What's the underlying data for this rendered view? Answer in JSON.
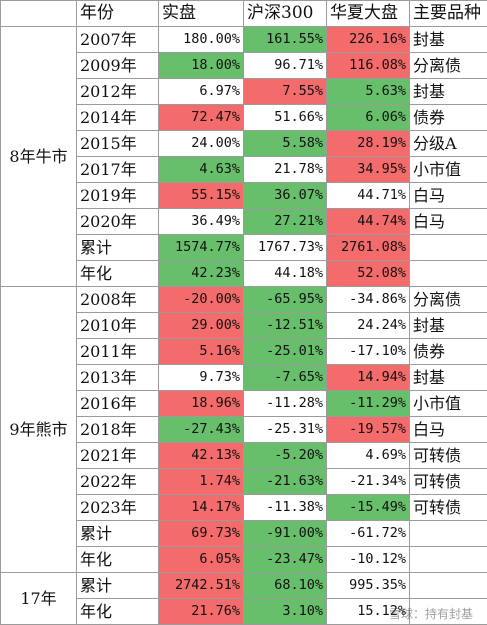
{
  "header": {
    "period": "",
    "year": "年份",
    "actual": "实盘",
    "hs300": "沪深300",
    "hxdp": "华夏大盘",
    "product": "主要品种"
  },
  "sections": [
    {
      "period": "8年牛市",
      "rows": [
        {
          "year": "2007年",
          "actual": "180.00%",
          "actual_color": "white",
          "hs300": "161.55%",
          "hs300_color": "green",
          "hxdp": "226.16%",
          "hxdp_color": "red",
          "product": "封基"
        },
        {
          "year": "2009年",
          "actual": "18.00%",
          "actual_color": "green",
          "hs300": "96.71%",
          "hs300_color": "white",
          "hxdp": "116.08%",
          "hxdp_color": "red",
          "product": "分离债"
        },
        {
          "year": "2012年",
          "actual": "6.97%",
          "actual_color": "white",
          "hs300": "7.55%",
          "hs300_color": "red",
          "hxdp": "5.63%",
          "hxdp_color": "green",
          "product": "封基"
        },
        {
          "year": "2014年",
          "actual": "72.47%",
          "actual_color": "red",
          "hs300": "51.66%",
          "hs300_color": "white",
          "hxdp": "6.06%",
          "hxdp_color": "green",
          "product": "债券"
        },
        {
          "year": "2015年",
          "actual": "24.00%",
          "actual_color": "white",
          "hs300": "5.58%",
          "hs300_color": "green",
          "hxdp": "28.19%",
          "hxdp_color": "red",
          "product": "分级A"
        },
        {
          "year": "2017年",
          "actual": "4.63%",
          "actual_color": "green",
          "hs300": "21.78%",
          "hs300_color": "white",
          "hxdp": "34.95%",
          "hxdp_color": "red",
          "product": "小市值"
        },
        {
          "year": "2019年",
          "actual": "55.15%",
          "actual_color": "red",
          "hs300": "36.07%",
          "hs300_color": "green",
          "hxdp": "44.71%",
          "hxdp_color": "white",
          "product": "白马"
        },
        {
          "year": "2020年",
          "actual": "36.49%",
          "actual_color": "white",
          "hs300": "27.21%",
          "hs300_color": "green",
          "hxdp": "44.74%",
          "hxdp_color": "red",
          "product": "白马"
        },
        {
          "year": "累计",
          "actual": "1574.77%",
          "actual_color": "green",
          "hs300": "1767.73%",
          "hs300_color": "white",
          "hxdp": "2761.08%",
          "hxdp_color": "red",
          "product": ""
        },
        {
          "year": "年化",
          "actual": "42.23%",
          "actual_color": "green",
          "hs300": "44.18%",
          "hs300_color": "white",
          "hxdp": "52.08%",
          "hxdp_color": "red",
          "product": ""
        }
      ]
    },
    {
      "period": "9年熊市",
      "rows": [
        {
          "year": "2008年",
          "actual": "-20.00%",
          "actual_color": "red",
          "hs300": "-65.95%",
          "hs300_color": "green",
          "hxdp": "-34.86%",
          "hxdp_color": "white",
          "product": "分离债"
        },
        {
          "year": "2010年",
          "actual": "29.00%",
          "actual_color": "red",
          "hs300": "-12.51%",
          "hs300_color": "green",
          "hxdp": "24.24%",
          "hxdp_color": "white",
          "product": "封基"
        },
        {
          "year": "2011年",
          "actual": "5.16%",
          "actual_color": "red",
          "hs300": "-25.01%",
          "hs300_color": "green",
          "hxdp": "-17.10%",
          "hxdp_color": "white",
          "product": "债券"
        },
        {
          "year": "2013年",
          "actual": "9.73%",
          "actual_color": "white",
          "hs300": "-7.65%",
          "hs300_color": "green",
          "hxdp": "14.94%",
          "hxdp_color": "red",
          "product": "封基"
        },
        {
          "year": "2016年",
          "actual": "18.96%",
          "actual_color": "red",
          "hs300": "-11.28%",
          "hs300_color": "white",
          "hxdp": "-11.29%",
          "hxdp_color": "green",
          "product": "小市值"
        },
        {
          "year": "2018年",
          "actual": "-27.43%",
          "actual_color": "green",
          "hs300": "-25.31%",
          "hs300_color": "white",
          "hxdp": "-19.57%",
          "hxdp_color": "red",
          "product": "白马"
        },
        {
          "year": "2021年",
          "actual": "42.13%",
          "actual_color": "red",
          "hs300": "-5.20%",
          "hs300_color": "green",
          "hxdp": "4.69%",
          "hxdp_color": "white",
          "product": "可转债"
        },
        {
          "year": "2022年",
          "actual": "1.74%",
          "actual_color": "red",
          "hs300": "-21.63%",
          "hs300_color": "green",
          "hxdp": "-21.34%",
          "hxdp_color": "white",
          "product": "可转债"
        },
        {
          "year": "2023年",
          "actual": "14.17%",
          "actual_color": "red",
          "hs300": "-11.38%",
          "hs300_color": "white",
          "hxdp": "-15.49%",
          "hxdp_color": "green",
          "product": "可转债"
        },
        {
          "year": "累计",
          "actual": "69.73%",
          "actual_color": "red",
          "hs300": "-91.00%",
          "hs300_color": "green",
          "hxdp": "-61.72%",
          "hxdp_color": "white",
          "product": ""
        },
        {
          "year": "年化",
          "actual": "6.05%",
          "actual_color": "red",
          "hs300": "-23.47%",
          "hs300_color": "green",
          "hxdp": "-10.12%",
          "hxdp_color": "white",
          "product": ""
        }
      ]
    },
    {
      "period": "17年",
      "rows": [
        {
          "year": "累计",
          "actual": "2742.51%",
          "actual_color": "red",
          "hs300": "68.10%",
          "hs300_color": "green",
          "hxdp": "995.35%",
          "hxdp_color": "white",
          "product": ""
        },
        {
          "year": "年化",
          "actual": "21.76%",
          "actual_color": "red",
          "hs300": "3.10%",
          "hs300_color": "green",
          "hxdp": "15.12%",
          "hxdp_color": "white",
          "product": ""
        }
      ]
    }
  ],
  "colors": {
    "red": "#f36b6b",
    "green": "#67bf6b",
    "white": "#ffffff"
  },
  "watermark": "雪球：持有封基"
}
